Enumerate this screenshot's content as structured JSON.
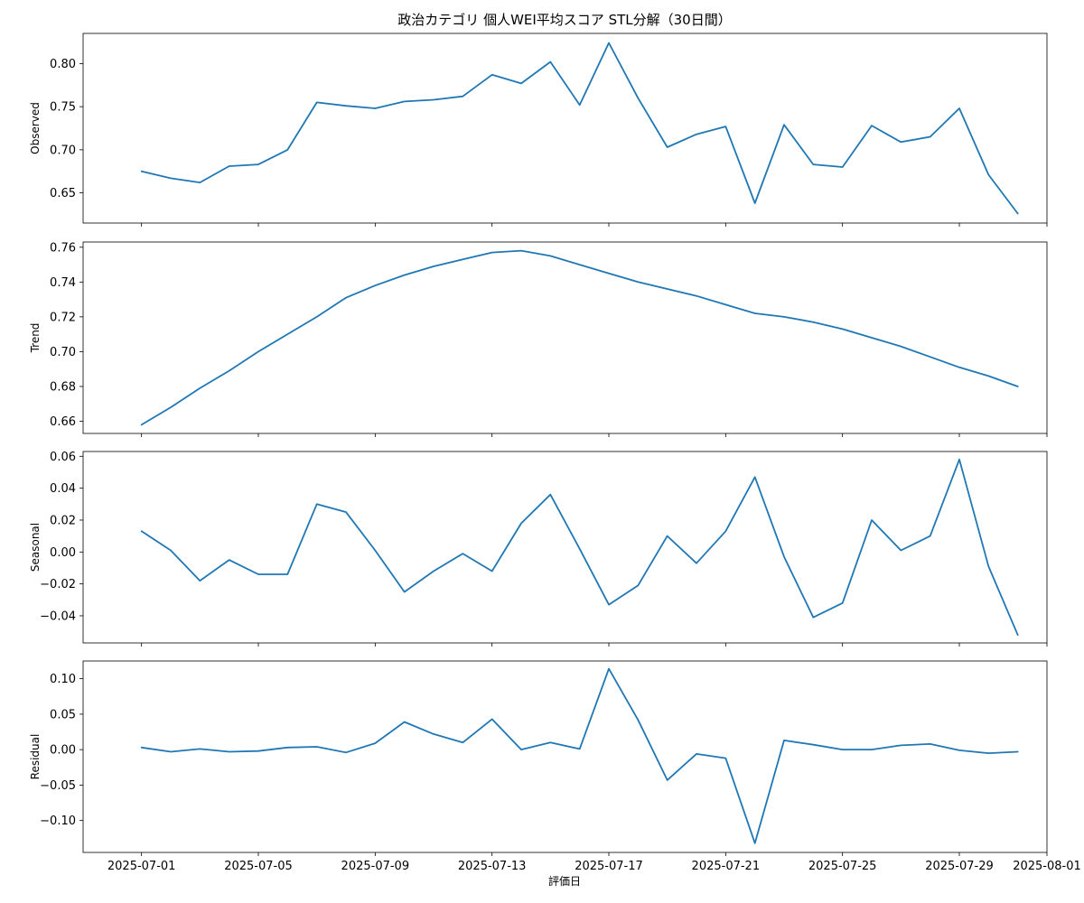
{
  "chart_data": {
    "type": "line",
    "title": "政治カテゴリ 個人WEI平均スコア STL分解（30日間）",
    "xlabel": "評価日",
    "line_color": "#1f77b4",
    "x": [
      "2025-07-01",
      "2025-07-02",
      "2025-07-03",
      "2025-07-04",
      "2025-07-05",
      "2025-07-06",
      "2025-07-07",
      "2025-07-08",
      "2025-07-09",
      "2025-07-10",
      "2025-07-11",
      "2025-07-12",
      "2025-07-13",
      "2025-07-14",
      "2025-07-15",
      "2025-07-16",
      "2025-07-17",
      "2025-07-18",
      "2025-07-19",
      "2025-07-20",
      "2025-07-21",
      "2025-07-22",
      "2025-07-23",
      "2025-07-24",
      "2025-07-25",
      "2025-07-26",
      "2025-07-27",
      "2025-07-28",
      "2025-07-29",
      "2025-07-30",
      "2025-07-31"
    ],
    "x_ticks": [
      "2025-07-01",
      "2025-07-05",
      "2025-07-09",
      "2025-07-13",
      "2025-07-17",
      "2025-07-21",
      "2025-07-25",
      "2025-07-29",
      "2025-08-01"
    ],
    "xlim": [
      "2025-06-29",
      "2025-08-01"
    ],
    "panels": [
      {
        "ylabel": "Observed",
        "ylim": [
          0.615,
          0.835
        ],
        "yticks": [
          "0.65",
          "0.70",
          "0.75",
          "0.80"
        ],
        "values": [
          0.675,
          0.667,
          0.662,
          0.681,
          0.683,
          0.7,
          0.755,
          0.751,
          0.748,
          0.756,
          0.758,
          0.762,
          0.787,
          0.777,
          0.802,
          0.752,
          0.824,
          0.76,
          0.703,
          0.718,
          0.727,
          0.638,
          0.729,
          0.683,
          0.68,
          0.728,
          0.709,
          0.715,
          0.748,
          0.671,
          0.626
        ]
      },
      {
        "ylabel": "Trend",
        "ylim": [
          0.653,
          0.763
        ],
        "yticks": [
          "0.66",
          "0.68",
          "0.70",
          "0.72",
          "0.74",
          "0.76"
        ],
        "values": [
          0.658,
          0.668,
          0.679,
          0.689,
          0.7,
          0.71,
          0.72,
          0.731,
          0.738,
          0.744,
          0.749,
          0.753,
          0.757,
          0.758,
          0.755,
          0.75,
          0.745,
          0.74,
          0.736,
          0.732,
          0.727,
          0.722,
          0.72,
          0.717,
          0.713,
          0.708,
          0.703,
          0.697,
          0.691,
          0.686,
          0.68
        ]
      },
      {
        "ylabel": "Seasonal",
        "ylim": [
          -0.057,
          0.063
        ],
        "yticks": [
          "−0.04",
          "−0.02",
          "0.00",
          "0.02",
          "0.04",
          "0.06"
        ],
        "values": [
          0.013,
          0.001,
          -0.018,
          -0.005,
          -0.014,
          -0.014,
          0.03,
          0.025,
          0.001,
          -0.025,
          -0.012,
          -0.001,
          -0.012,
          0.018,
          0.036,
          0.002,
          -0.033,
          -0.021,
          0.01,
          -0.007,
          0.013,
          0.047,
          -0.003,
          -0.041,
          -0.032,
          0.02,
          0.001,
          0.01,
          0.058,
          -0.009,
          -0.052
        ]
      },
      {
        "ylabel": "Residual",
        "ylim": [
          -0.145,
          0.125
        ],
        "yticks": [
          "−0.10",
          "−0.05",
          "0.00",
          "0.05",
          "0.10"
        ],
        "values": [
          0.003,
          -0.003,
          0.001,
          -0.003,
          -0.002,
          0.003,
          0.004,
          -0.004,
          0.009,
          0.039,
          0.022,
          0.01,
          0.043,
          0.0,
          0.01,
          0.001,
          0.114,
          0.042,
          -0.043,
          -0.006,
          -0.012,
          -0.132,
          0.013,
          0.007,
          0.0,
          0.0,
          0.006,
          0.008,
          -0.001,
          -0.005,
          -0.003
        ]
      }
    ]
  }
}
